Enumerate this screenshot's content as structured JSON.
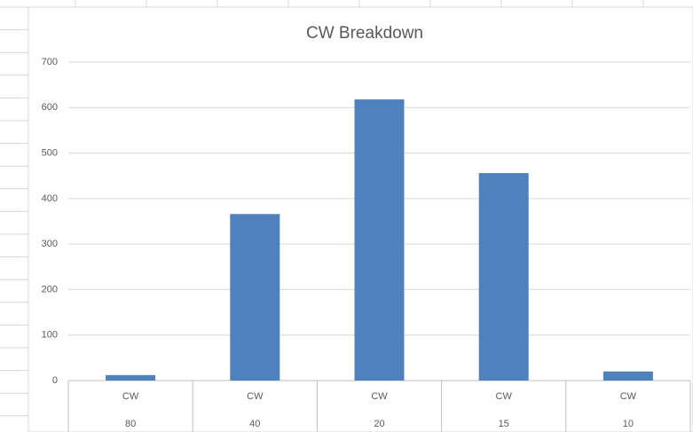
{
  "chart_data": {
    "type": "bar",
    "title": "CW Breakdown",
    "categories": [
      [
        "CW",
        "80"
      ],
      [
        "CW",
        "40"
      ],
      [
        "CW",
        "20"
      ],
      [
        "CW",
        "15"
      ],
      [
        "CW",
        "10"
      ]
    ],
    "values": [
      12,
      366,
      618,
      456,
      20
    ],
    "color": "#4f81bd",
    "ylim": [
      0,
      700
    ],
    "yticks": [
      0,
      100,
      200,
      300,
      400,
      500,
      600,
      700
    ],
    "grid": true
  }
}
